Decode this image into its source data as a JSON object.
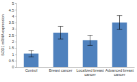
{
  "chart_data": {
    "type": "bar",
    "y_label": "SOD1 mRNA expression",
    "categories": [
      "Control",
      "Breast cancer",
      "Localized breast cancer",
      "Advanced breast cancer"
    ],
    "values": [
      1.05,
      2.7,
      2.1,
      3.5
    ],
    "errors": [
      0.25,
      0.5,
      0.4,
      0.55
    ],
    "color": "#4f81bd",
    "ylim": [
      0,
      5
    ],
    "yticks": [
      0,
      0.5,
      1,
      1.5,
      2,
      2.5,
      3,
      3.5,
      4,
      4.5,
      5
    ],
    "grid": false
  }
}
